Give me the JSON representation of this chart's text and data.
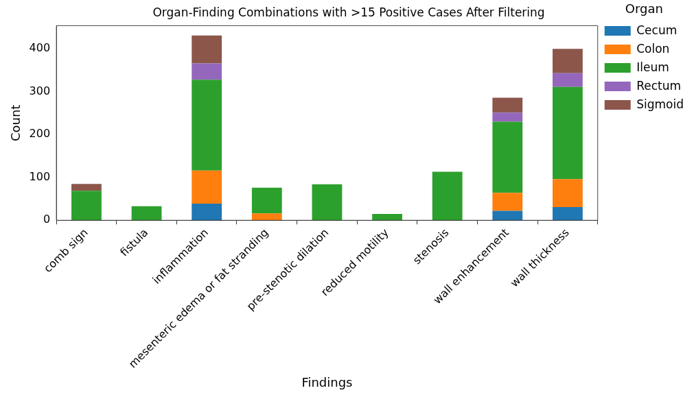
{
  "chart_data": {
    "type": "bar",
    "title": "Organ-Finding Combinations with >15 Positive Cases After Filtering",
    "xlabel": "Findings",
    "ylabel": "Count",
    "legend_title": "Organ",
    "categories": [
      "comb sign",
      "fistula",
      "inflammation",
      "mesenteric edema or fat stranding",
      "pre-stenotic dilation",
      "reduced motility",
      "stenosis",
      "wall enhancement",
      "wall thickness"
    ],
    "series": [
      {
        "name": "Cecum",
        "color": "#1f77b4",
        "values": [
          null,
          null,
          39,
          null,
          null,
          null,
          null,
          22,
          31
        ]
      },
      {
        "name": "Colon",
        "color": "#ff7f0e",
        "values": [
          null,
          null,
          77,
          16,
          null,
          null,
          null,
          42,
          65
        ]
      },
      {
        "name": "Ileum",
        "color": "#2ca02c",
        "values": [
          69,
          33,
          212,
          60,
          84,
          15,
          113,
          166,
          215
        ]
      },
      {
        "name": "Rectum",
        "color": "#9467bd",
        "values": [
          null,
          null,
          38,
          null,
          null,
          null,
          null,
          21,
          32
        ]
      },
      {
        "name": "Sigmoid",
        "color": "#8c564b",
        "values": [
          16,
          null,
          65,
          null,
          null,
          null,
          null,
          35,
          57
        ]
      }
    ],
    "stacked": true,
    "ylim": [
      0,
      454
    ],
    "yticks": [
      0,
      100,
      200,
      300,
      400
    ],
    "grid": false,
    "legend": "top right"
  }
}
